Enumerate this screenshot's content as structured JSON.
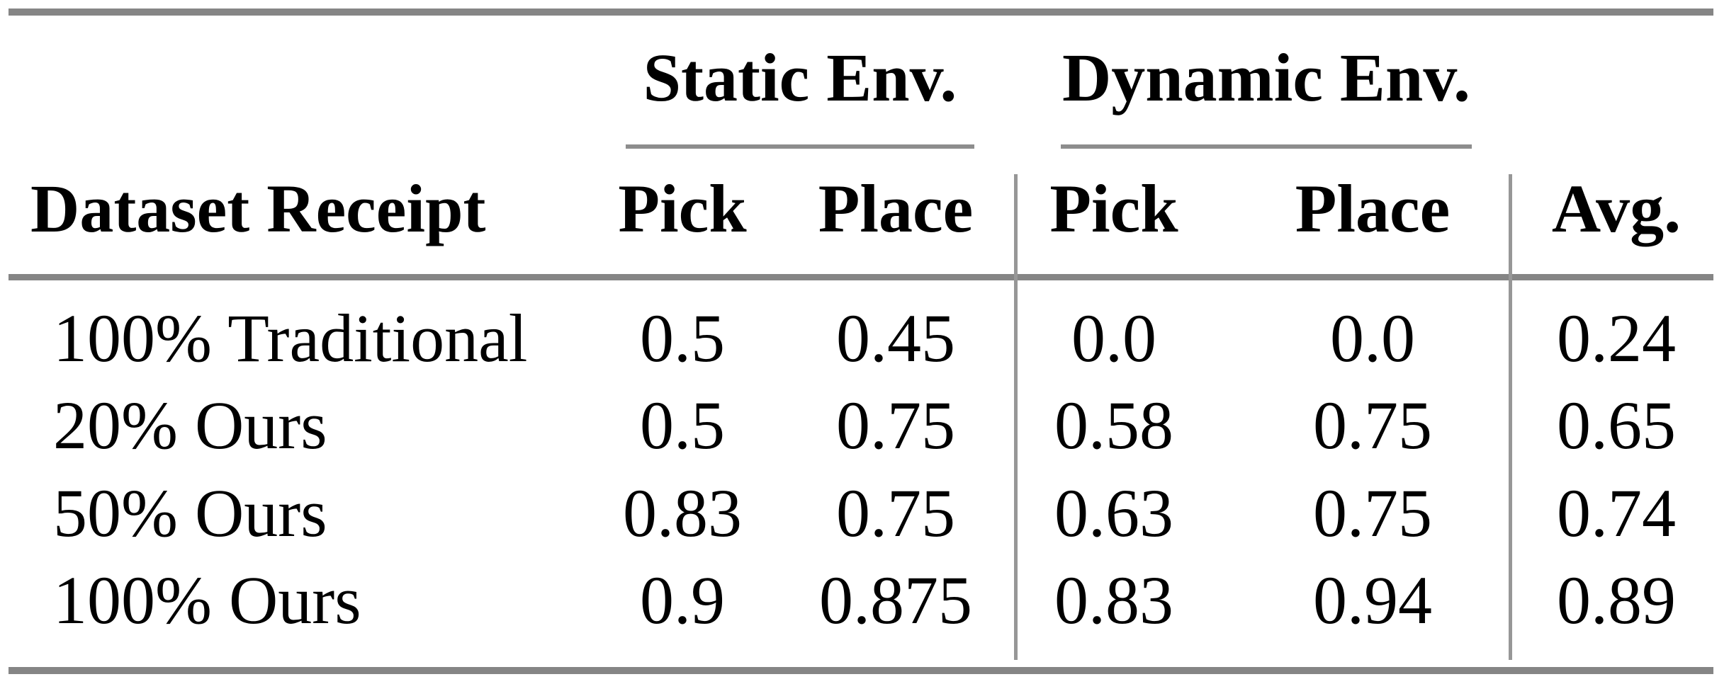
{
  "table": {
    "groups": [
      {
        "label": "Static Env."
      },
      {
        "label": "Dynamic Env."
      }
    ],
    "header": {
      "row_label": "Dataset Receipt",
      "static_pick": "Pick",
      "static_place": "Place",
      "dynamic_pick": "Pick",
      "dynamic_place": "Place",
      "avg": "Avg."
    },
    "rows": [
      {
        "label": "100% Traditional",
        "values": [
          "0.5",
          "0.45",
          "0.0",
          "0.0",
          "0.24"
        ]
      },
      {
        "label": "20% Ours",
        "values": [
          "0.5",
          "0.75",
          "0.58",
          "0.75",
          "0.65"
        ]
      },
      {
        "label": "50% Ours",
        "values": [
          "0.83",
          "0.75",
          "0.63",
          "0.75",
          "0.74"
        ]
      },
      {
        "label": "100% Ours",
        "values": [
          "0.9",
          "0.875",
          "0.83",
          "0.94",
          "0.89"
        ]
      }
    ],
    "colors": {
      "thick_rule": "#858585",
      "thin_rule": "#8d8d8d",
      "vertical_divider": "#979797",
      "text": "#000000",
      "background": "#ffffff"
    }
  }
}
